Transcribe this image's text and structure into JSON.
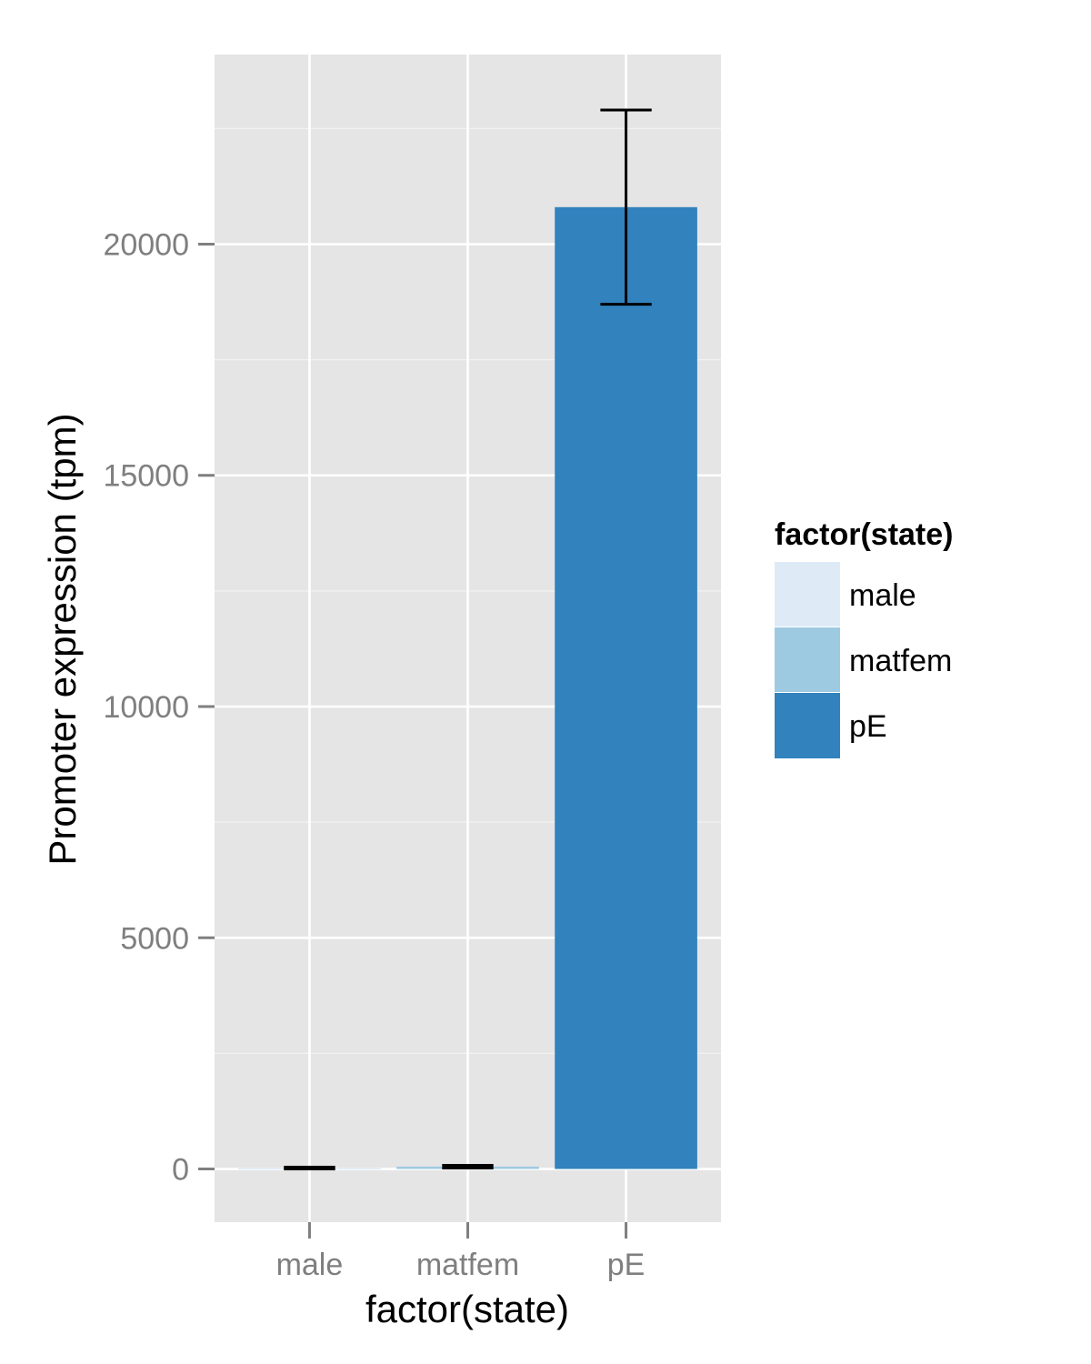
{
  "chart_data": {
    "type": "bar",
    "categories": [
      "male",
      "matfem",
      "pE"
    ],
    "values": [
      20,
      50,
      20800
    ],
    "error_bars": [
      {
        "low": 0,
        "high": 40
      },
      {
        "low": 20,
        "high": 80
      },
      {
        "low": 18700,
        "high": 22900
      }
    ],
    "colors": [
      "#deebf7",
      "#9ecae1",
      "#3182bd"
    ],
    "xlabel": "factor(state)",
    "ylabel": "Promoter expression (tpm)",
    "ylim": [
      -1150,
      24100
    ],
    "yticks": [
      0,
      5000,
      10000,
      15000,
      20000
    ],
    "ytick_labels": [
      "0",
      "5000",
      "10000",
      "15000",
      "20000"
    ],
    "grid": true,
    "panel_background": "#e5e5e5",
    "grid_color": "#ffffff",
    "legend": {
      "title": "factor(state)",
      "placement": "right",
      "entries": [
        "male",
        "matfem",
        "pE"
      ]
    }
  }
}
